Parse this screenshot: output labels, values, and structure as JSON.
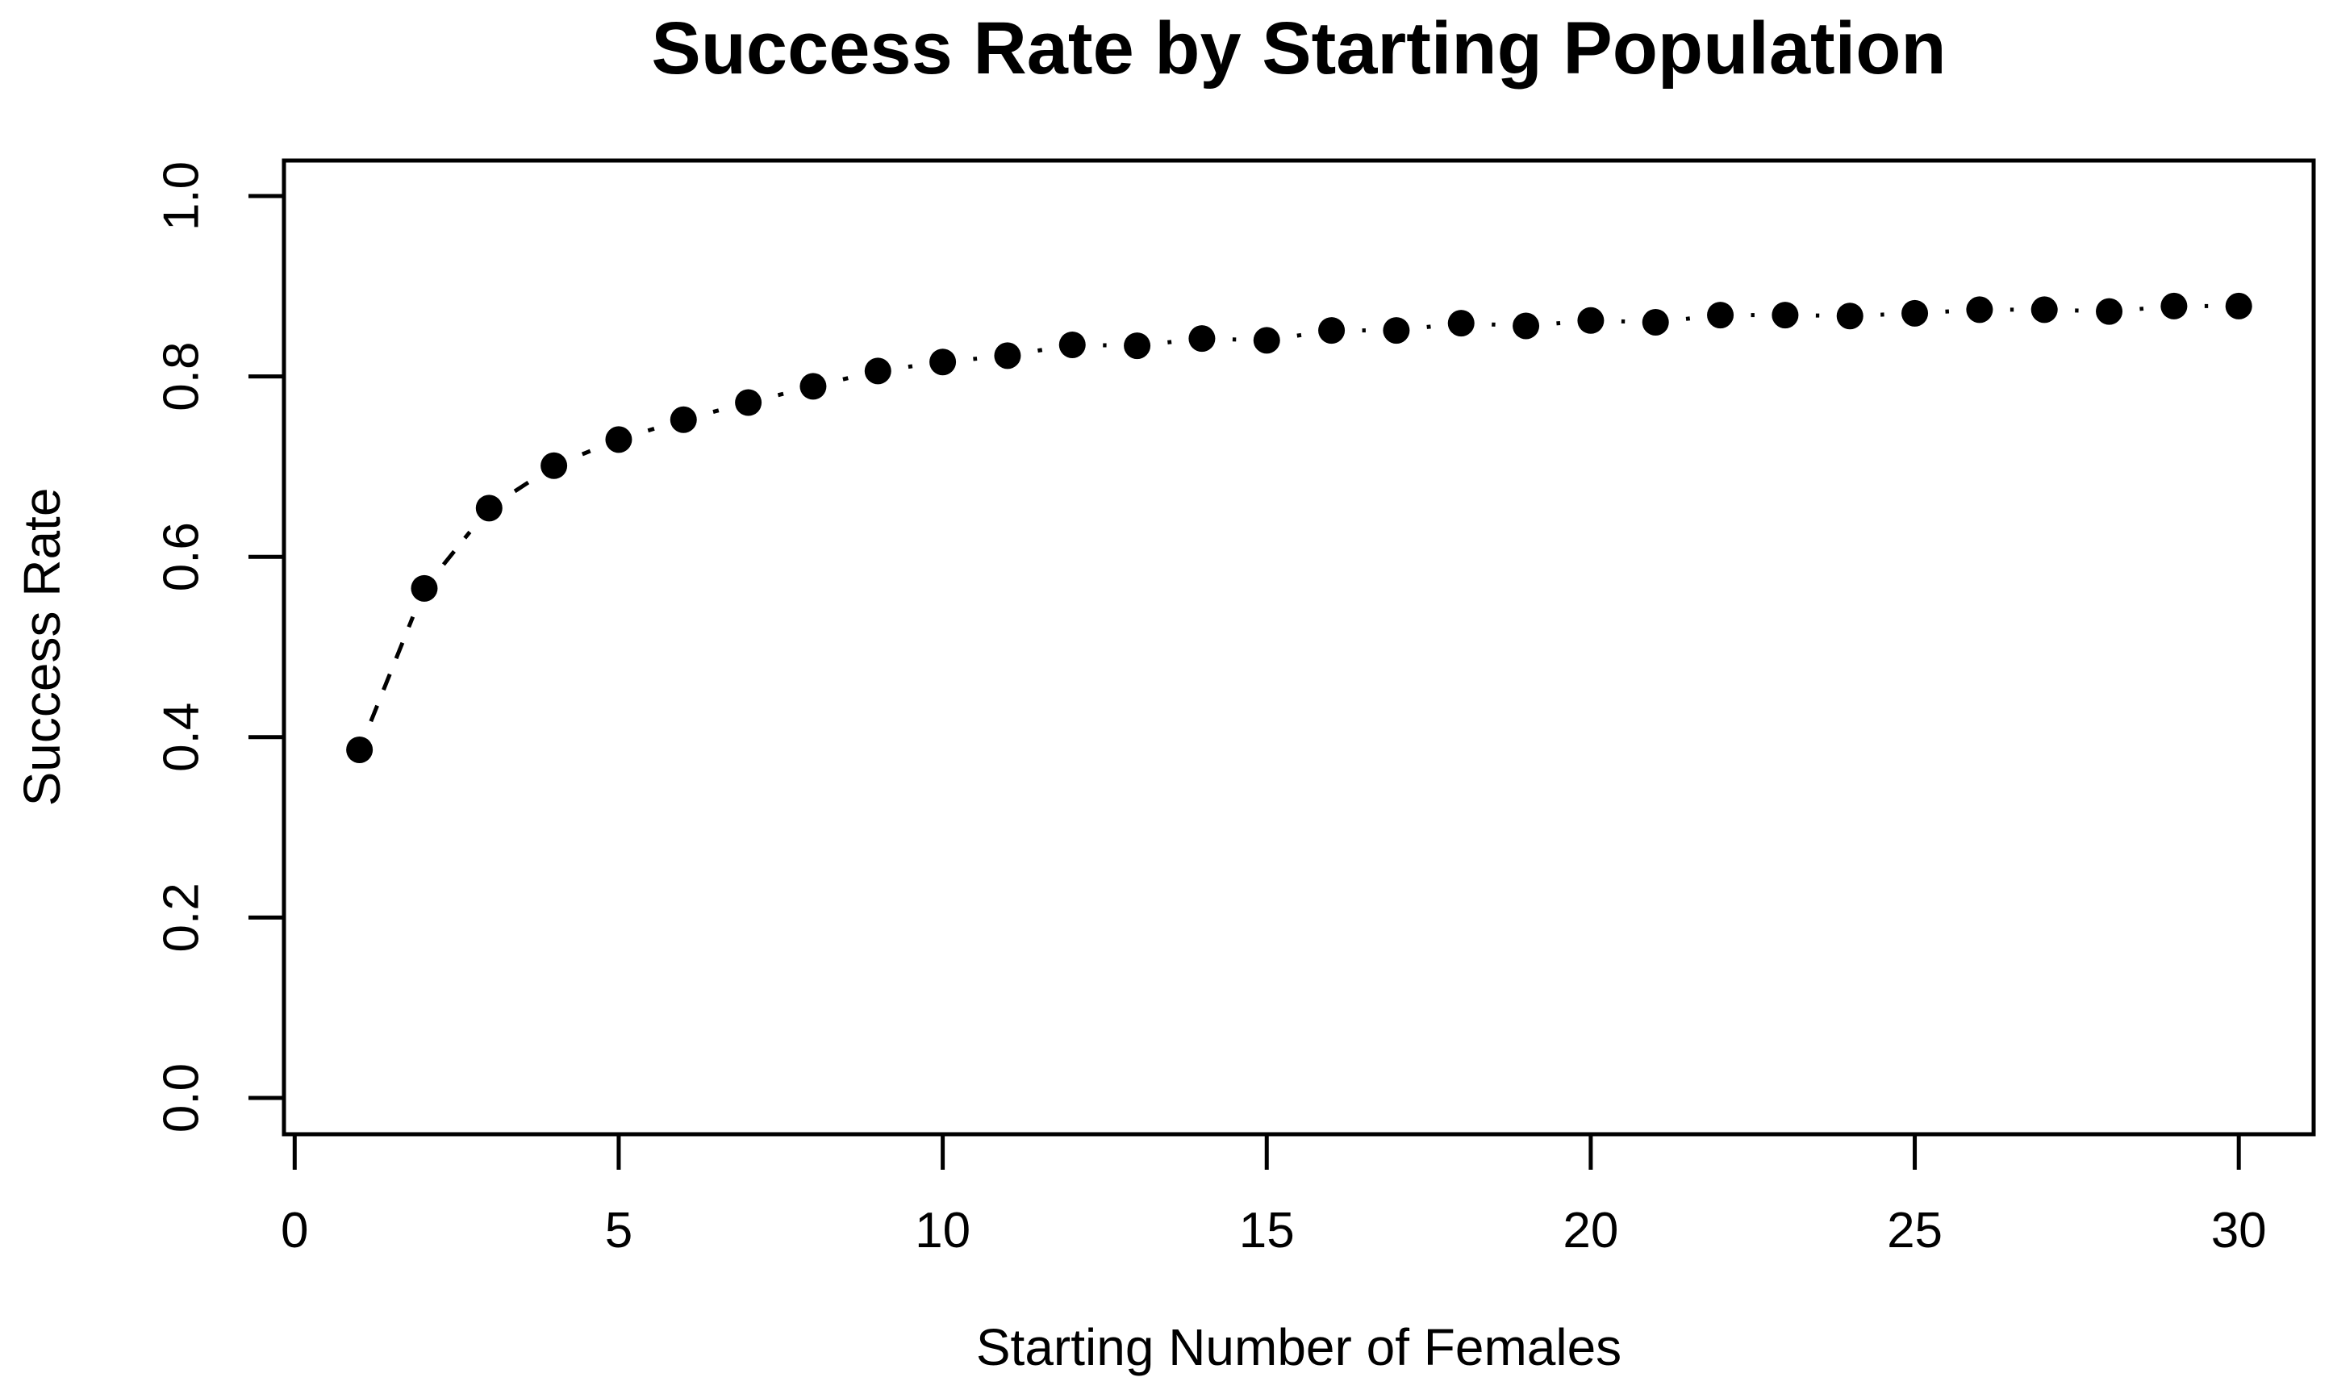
{
  "page": {
    "background": "#ffffff",
    "foreground": "#000000"
  },
  "chart_data": {
    "type": "line",
    "subtype": "points-with-dashed-connector (R type='b', pch=19, lty=2)",
    "title": "Success Rate by Starting Population",
    "xlabel": "Starting Number of Females",
    "ylabel": "Success Rate",
    "x": [
      1,
      2,
      3,
      4,
      5,
      6,
      7,
      8,
      9,
      10,
      11,
      12,
      13,
      14,
      15,
      16,
      17,
      18,
      19,
      20,
      21,
      22,
      23,
      24,
      25,
      26,
      27,
      28,
      29,
      30
    ],
    "y": [
      0.386,
      0.565,
      0.654,
      0.701,
      0.73,
      0.752,
      0.771,
      0.789,
      0.806,
      0.816,
      0.823,
      0.835,
      0.834,
      0.842,
      0.84,
      0.851,
      0.851,
      0.859,
      0.856,
      0.862,
      0.86,
      0.868,
      0.868,
      0.867,
      0.87,
      0.874,
      0.874,
      0.872,
      0.878,
      0.878
    ],
    "x_ticks": [
      0,
      5,
      10,
      15,
      20,
      25,
      30
    ],
    "x_tick_labels": [
      "0",
      "5",
      "10",
      "15",
      "20",
      "25",
      "30"
    ],
    "y_ticks": [
      0.0,
      0.2,
      0.4,
      0.6,
      0.8,
      1.0
    ],
    "y_tick_labels": [
      "0.0",
      "0.2",
      "0.4",
      "0.6",
      "0.8",
      "1.0"
    ],
    "xlim": [
      0,
      30
    ],
    "ylim": [
      0.0,
      1.0
    ],
    "grid": false,
    "legend": "none",
    "marker": "filled-circle",
    "line_style": "dashed",
    "series_color": "#000000"
  }
}
